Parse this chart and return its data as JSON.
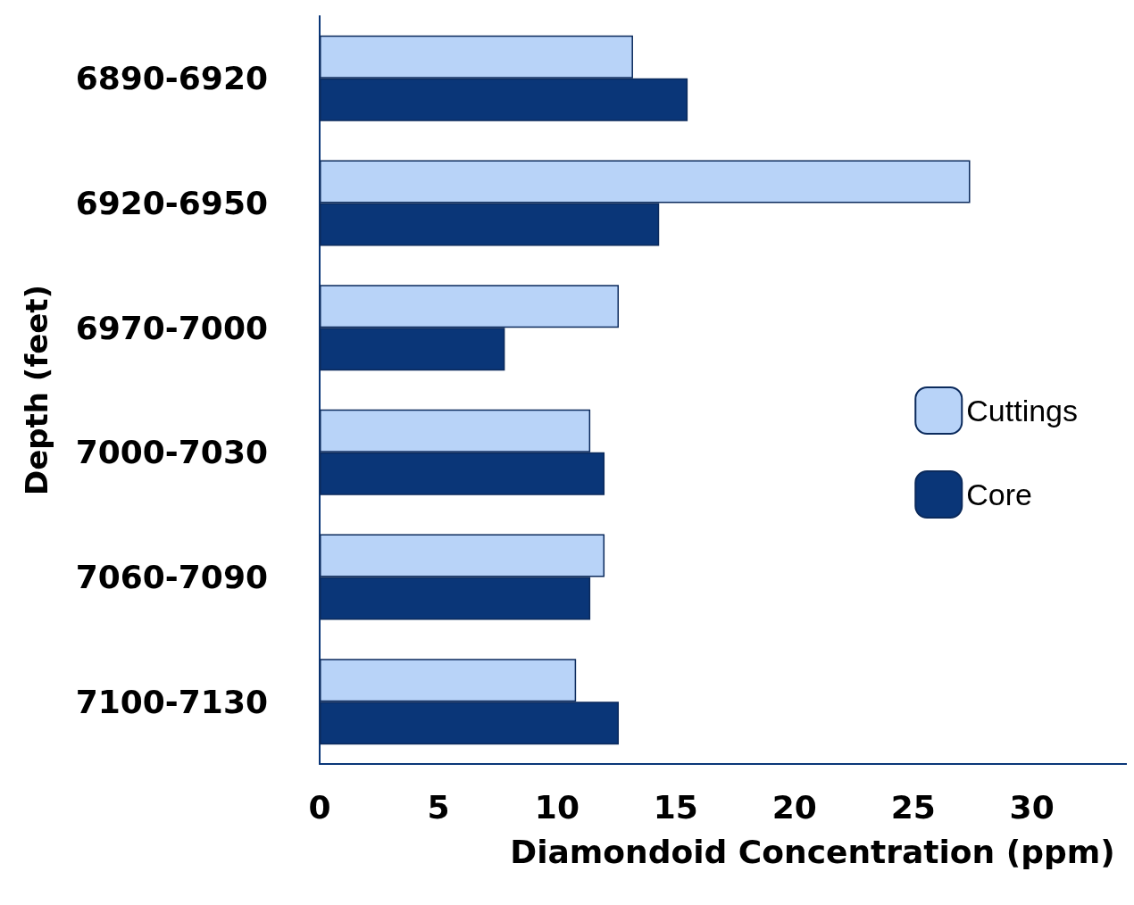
{
  "chart_data": {
    "type": "bar",
    "orientation": "horizontal",
    "xlabel": "Diamondoid Concentration (ppm)",
    "ylabel": "Depth (feet)",
    "categories": [
      "6890-6920",
      "6920-6950",
      "6970-7000",
      "7000-7030",
      "7060-7090",
      "7100-7130"
    ],
    "series": [
      {
        "name": "Cuttings",
        "color": "#b8d3f8",
        "values": [
          13.2,
          27.4,
          12.6,
          11.4,
          12.0,
          10.8
        ]
      },
      {
        "name": "Core",
        "color": "#0a3678",
        "values": [
          15.5,
          14.3,
          7.8,
          12.0,
          11.4,
          12.6
        ]
      }
    ],
    "xlim": [
      0,
      34
    ],
    "xticks": [
      0,
      5,
      10,
      15,
      20,
      25,
      30
    ],
    "grid": false,
    "legend": "right"
  }
}
